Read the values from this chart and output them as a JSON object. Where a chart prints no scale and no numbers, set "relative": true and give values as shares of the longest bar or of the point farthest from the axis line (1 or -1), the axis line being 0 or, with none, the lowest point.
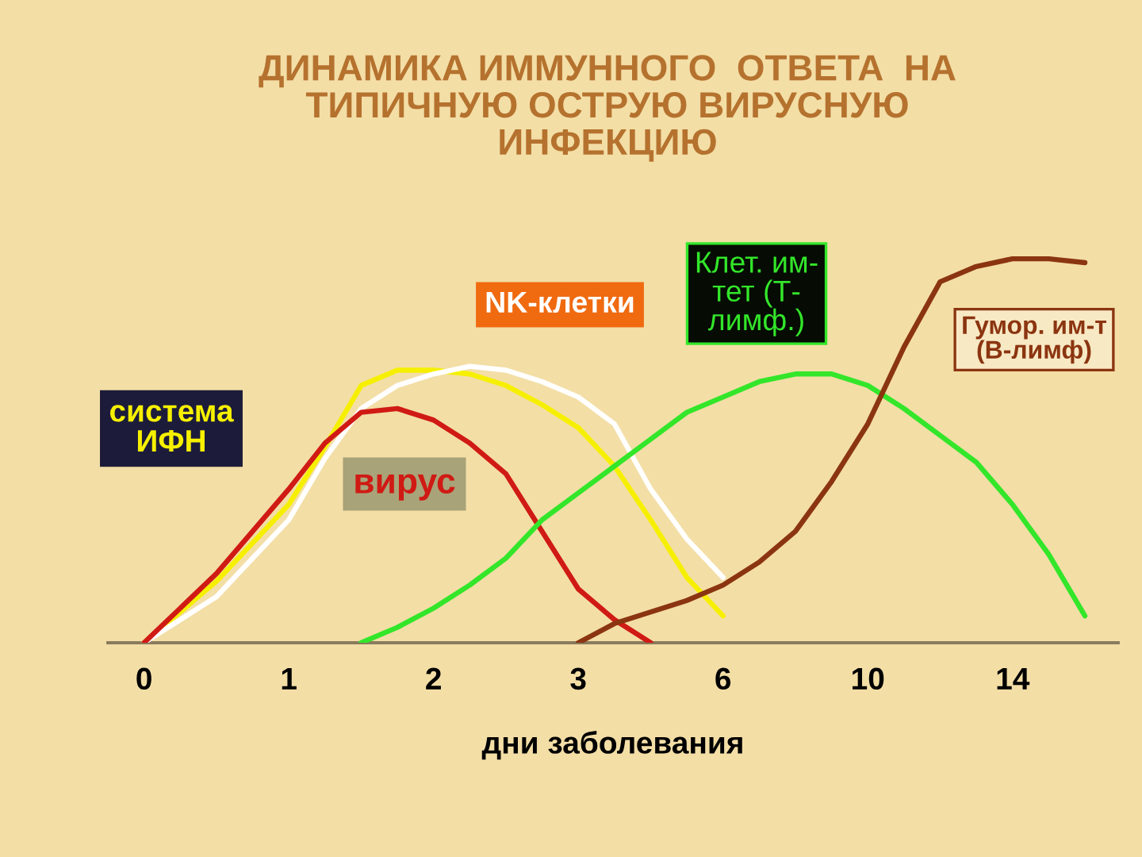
{
  "chart_data": {
    "type": "line",
    "relative": true,
    "title": "ДИНАМИКА ИММУННОГО  ОТВЕТА  НА\nТИПИЧНУЮ ОСТРУЮ ВИРУСНУЮ\nИНФЕКЦИЮ",
    "xlabel": "дни заболевания",
    "categories": [
      "0",
      null,
      null,
      null,
      "1",
      null,
      null,
      null,
      "2",
      null,
      null,
      null,
      "3",
      null,
      null,
      null,
      "6",
      null,
      null,
      null,
      "10",
      null,
      null,
      null,
      "14",
      null,
      null
    ],
    "series": [
      {
        "name": "система\nИФН",
        "color": "#f6f000",
        "values": [
          0,
          0.08,
          0.16,
          0.26,
          0.36,
          0.51,
          0.67,
          0.71,
          0.71,
          0.7,
          0.67,
          0.62,
          0.56,
          0.46,
          0.32,
          0.17,
          0.07,
          null,
          null,
          null,
          null,
          null,
          null,
          null,
          null,
          null,
          null
        ]
      },
      {
        "name": "NK-клетки",
        "color": "#ffffff",
        "values": [
          0,
          0.06,
          0.12,
          0.22,
          0.32,
          0.48,
          0.61,
          0.67,
          0.7,
          0.72,
          0.71,
          0.68,
          0.64,
          0.57,
          0.4,
          0.27,
          0.17,
          null,
          null,
          null,
          null,
          null,
          null,
          null,
          null,
          null,
          null
        ]
      },
      {
        "name": "вирус",
        "color": "#d01a14",
        "values": [
          0,
          0.09,
          0.18,
          0.29,
          0.4,
          0.52,
          0.6,
          0.61,
          0.58,
          0.52,
          0.44,
          0.29,
          0.14,
          0.06,
          0,
          null,
          null,
          null,
          null,
          null,
          null,
          null,
          null,
          null,
          null,
          null,
          null
        ]
      },
      {
        "name": "Клет. им-\nтет (Т-\nлимф.)",
        "color": "#33e62a",
        "values": [
          null,
          null,
          null,
          null,
          null,
          null,
          0,
          0.04,
          0.09,
          0.15,
          0.22,
          0.32,
          0.39,
          0.46,
          0.53,
          0.6,
          0.64,
          0.68,
          0.7,
          0.7,
          0.67,
          0.61,
          0.54,
          0.47,
          0.36,
          0.23,
          0.07
        ]
      },
      {
        "name": "Гумор. им-т\n(В-лимф)",
        "color": "#8b3510",
        "values": [
          null,
          null,
          null,
          null,
          null,
          null,
          null,
          null,
          null,
          null,
          null,
          null,
          0,
          0.05,
          0.08,
          0.11,
          0.15,
          0.21,
          0.29,
          0.42,
          0.57,
          0.77,
          0.94,
          0.98,
          1.0,
          1.0,
          0.99
        ]
      }
    ]
  }
}
